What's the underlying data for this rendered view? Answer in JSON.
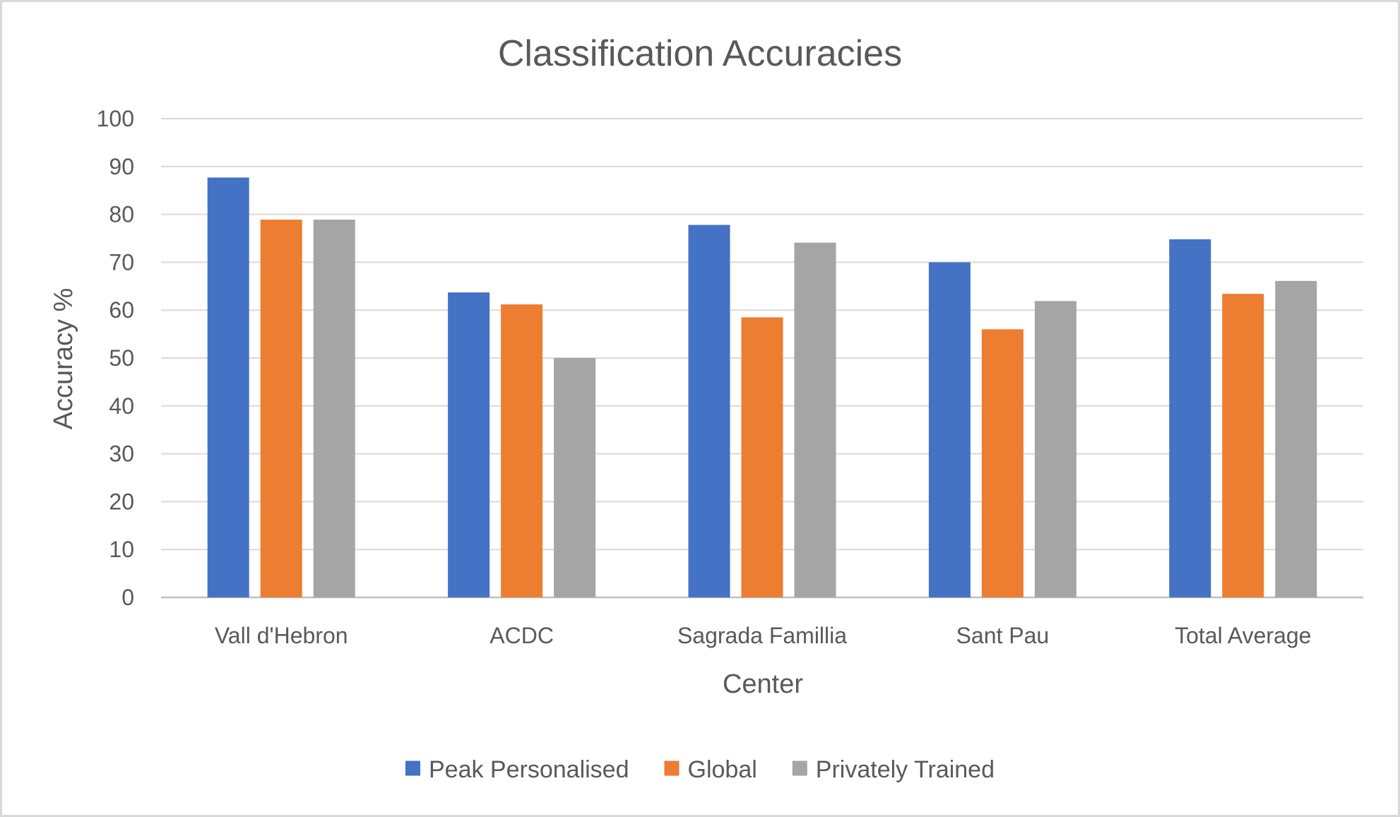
{
  "chart_data": {
    "type": "bar",
    "title": "Classification Accuracies",
    "xlabel": "Center",
    "ylabel": "Accuracy %",
    "ylim": [
      0,
      100
    ],
    "yticks": [
      "0",
      "10",
      "20",
      "30",
      "40",
      "50",
      "60",
      "70",
      "80",
      "90",
      "100"
    ],
    "categories": [
      "Vall d'Hebron",
      "ACDC",
      "Sagrada Famillia",
      "Sant Pau",
      "Total Average"
    ],
    "series": [
      {
        "name": "Peak Personalised",
        "color": "#4472c4",
        "values": [
          87.7,
          63.7,
          77.8,
          70.0,
          74.8
        ]
      },
      {
        "name": "Global",
        "color": "#ed7d31",
        "values": [
          78.9,
          61.2,
          58.5,
          56.0,
          63.4
        ]
      },
      {
        "name": "Privately Trained",
        "color": "#a5a5a5",
        "values": [
          78.9,
          50.0,
          74.1,
          61.9,
          66.1
        ]
      }
    ],
    "grid": true,
    "legend_position": "bottom"
  }
}
